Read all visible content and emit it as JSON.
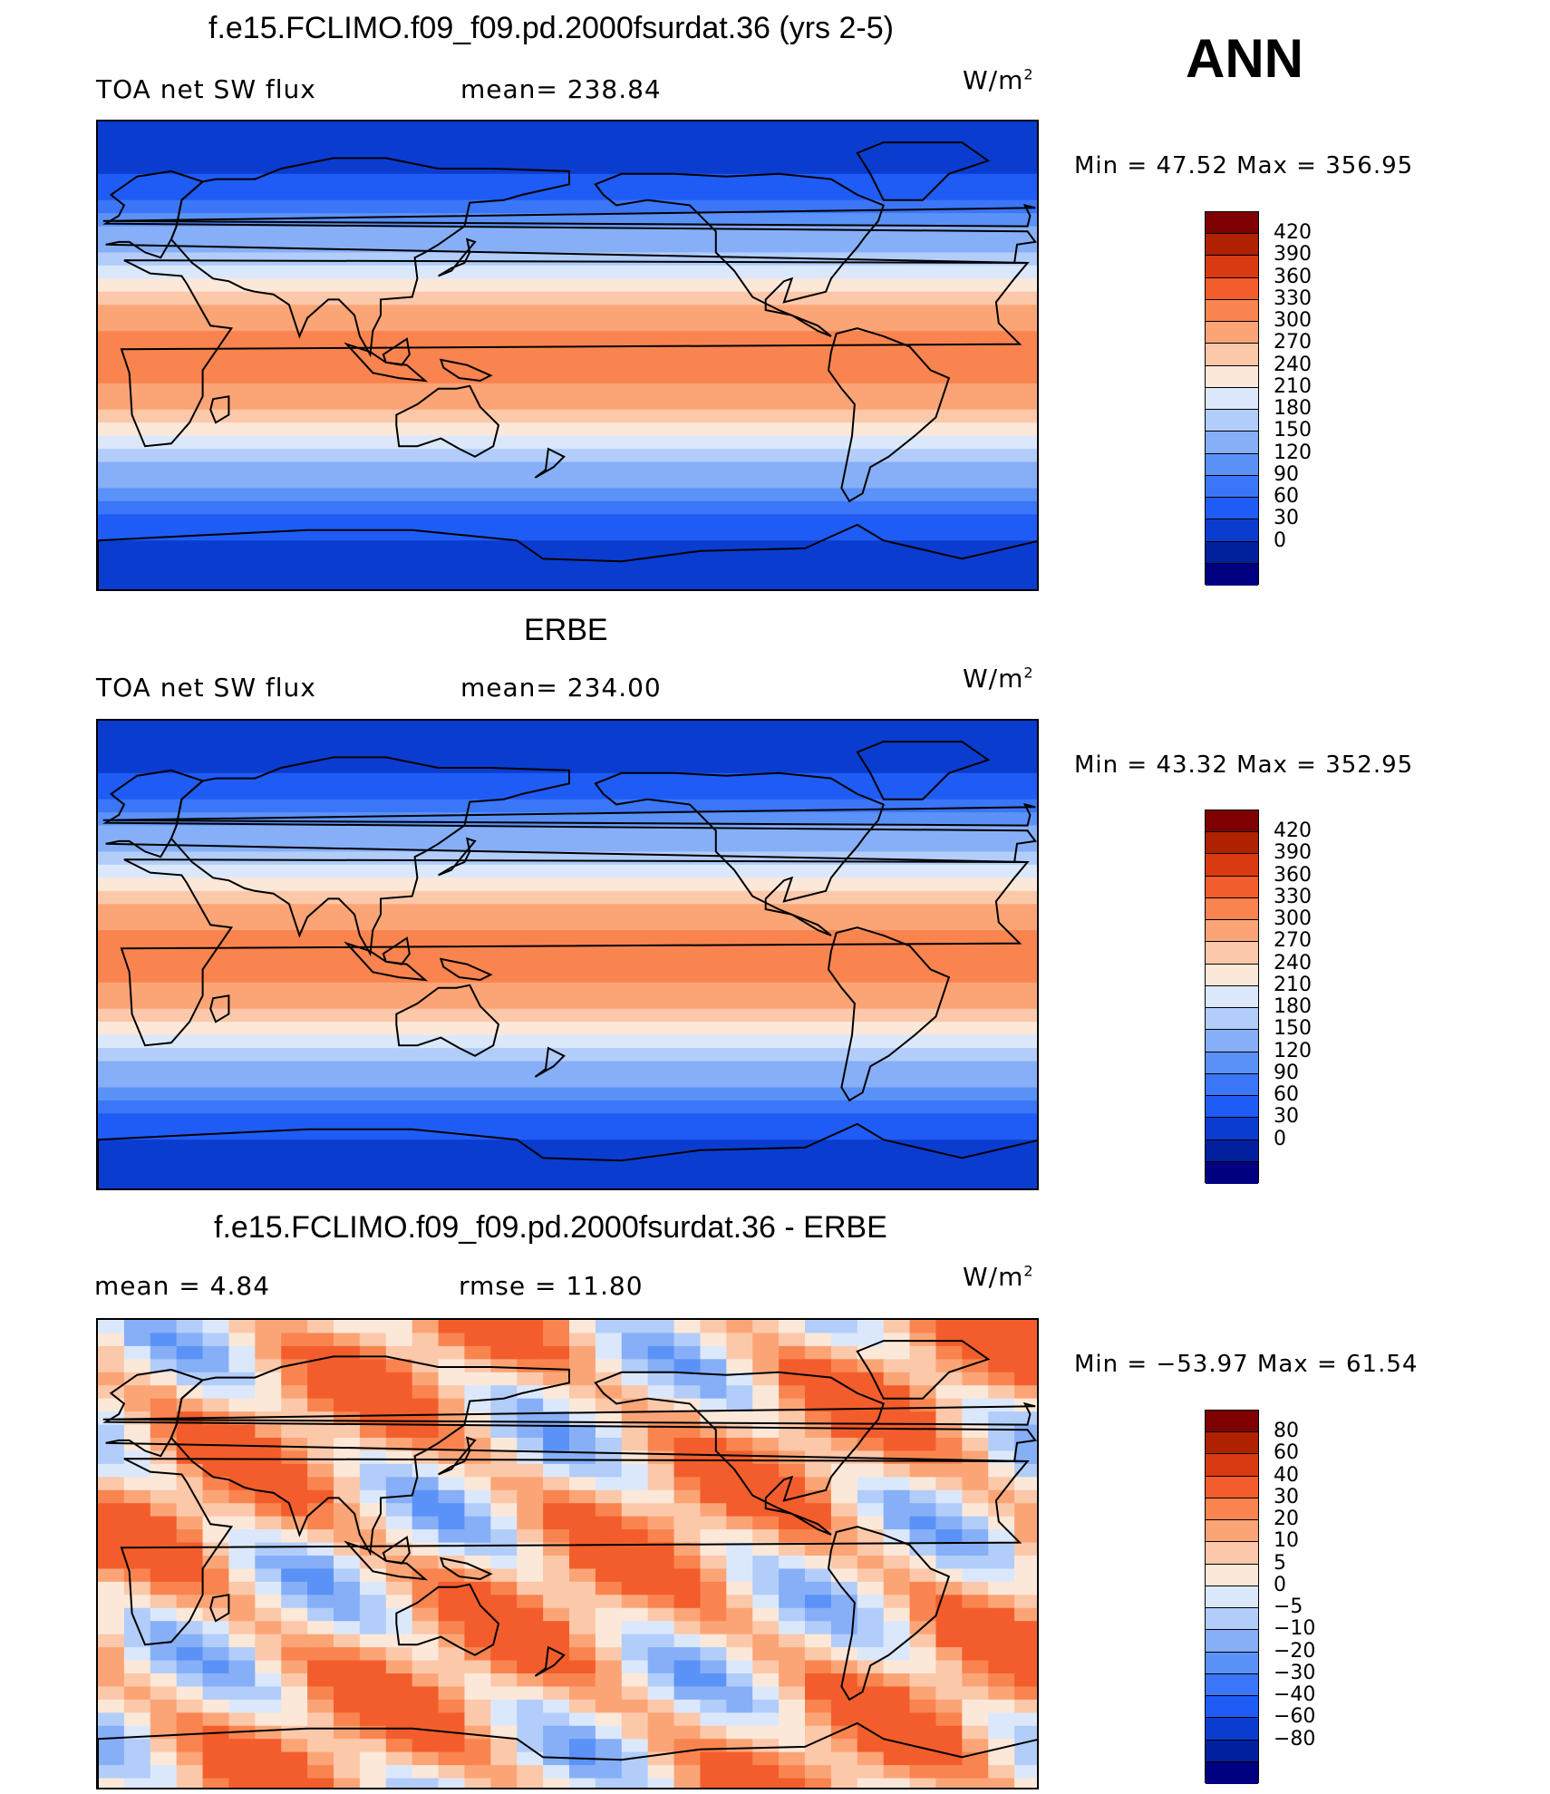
{
  "season": "ANN",
  "units": "W/m",
  "units_exp": "2",
  "colors": {
    "flux": [
      "#000080",
      "#00209e",
      "#0a3ccf",
      "#1f5cf5",
      "#3a76f7",
      "#5b92f7",
      "#86aff7",
      "#b2cdfa",
      "#dbe8fc",
      "#fce8d8",
      "#fcc8aa",
      "#fba577",
      "#f98450",
      "#f35d2c",
      "#d93a12",
      "#b02100",
      "#7e0000"
    ],
    "diff": [
      "#000080",
      "#0020a0",
      "#0a3ccf",
      "#1f5cf5",
      "#3a76f7",
      "#5b92f7",
      "#86aff7",
      "#b2cdfa",
      "#dbe8fc",
      "#fce8d8",
      "#fcc8aa",
      "#fba577",
      "#f98450",
      "#f35d2c",
      "#d93a12",
      "#b02100",
      "#7e0000"
    ]
  },
  "panels": [
    {
      "title": "f.e15.FCLIMO.f09_f09.pd.2000fsurdat.36 (yrs 2-5)",
      "left_label": "TOA net SW flux",
      "center_label": "mean= 238.84",
      "minmax": "Min =   47.52 Max = 356.95",
      "cb_labels": [
        "420",
        "390",
        "360",
        "330",
        "300",
        "270",
        "240",
        "210",
        "180",
        "150",
        "120",
        "90",
        "60",
        "30",
        "0"
      ]
    },
    {
      "title": "ERBE",
      "left_label": "TOA net SW flux",
      "center_label": "mean= 234.00",
      "minmax": "Min =   43.32 Max = 352.95",
      "cb_labels": [
        "420",
        "390",
        "360",
        "330",
        "300",
        "270",
        "240",
        "210",
        "180",
        "150",
        "120",
        "90",
        "60",
        "30",
        "0"
      ]
    },
    {
      "title": "f.e15.FCLIMO.f09_f09.pd.2000fsurdat.36 - ERBE",
      "left_label": "mean =     4.84",
      "center_label": "rmse =    11.80",
      "minmax": "Min = −53.97 Max =   61.54",
      "cb_labels": [
        "80",
        "60",
        "40",
        "30",
        "20",
        "10",
        "5",
        "0",
        "−5",
        "−10",
        "−20",
        "−30",
        "−40",
        "−60",
        "−80"
      ]
    }
  ]
}
